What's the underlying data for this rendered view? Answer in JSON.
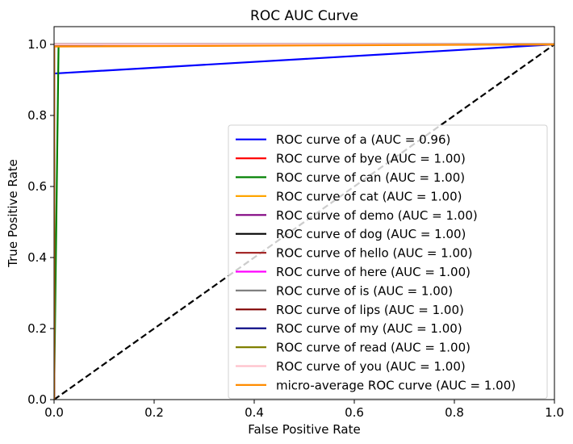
{
  "chart_data": {
    "type": "line",
    "title": "ROC AUC Curve",
    "xlabel": "False Positive Rate",
    "ylabel": "True Positive Rate",
    "xlim": [
      0.0,
      1.0
    ],
    "ylim": [
      0.0,
      1.05
    ],
    "xticks": [
      "0.0",
      "0.2",
      "0.4",
      "0.6",
      "0.8",
      "1.0"
    ],
    "yticks": [
      "0.0",
      "0.2",
      "0.4",
      "0.6",
      "0.8",
      "1.0"
    ],
    "grid": false,
    "legend_position": "lower-right",
    "series": [
      {
        "name": "ROC curve of a (AUC = 0.96)",
        "color": "#0000ff",
        "x": [
          0.0,
          0.0,
          1.0
        ],
        "y": [
          0.0,
          0.918,
          1.0
        ]
      },
      {
        "name": "ROC curve of bye (AUC = 1.00)",
        "color": "#ff0000",
        "x": [
          0.0,
          0.0,
          1.0
        ],
        "y": [
          0.0,
          1.0,
          1.0
        ]
      },
      {
        "name": "ROC curve of can (AUC = 1.00)",
        "color": "#008000",
        "x": [
          0.0,
          0.009,
          1.0
        ],
        "y": [
          0.0,
          1.0,
          1.0
        ]
      },
      {
        "name": "ROC curve of cat (AUC = 1.00)",
        "color": "#ffa500",
        "x": [
          0.0,
          0.0,
          1.0
        ],
        "y": [
          0.0,
          1.0,
          1.0
        ]
      },
      {
        "name": "ROC curve of demo (AUC = 1.00)",
        "color": "#800080",
        "x": [
          0.0,
          0.0,
          1.0
        ],
        "y": [
          0.0,
          1.0,
          1.0
        ]
      },
      {
        "name": "ROC curve of dog (AUC = 1.00)",
        "color": "#000000",
        "x": [
          0.0,
          0.0,
          1.0
        ],
        "y": [
          0.0,
          1.0,
          1.0
        ]
      },
      {
        "name": "ROC curve of hello (AUC = 1.00)",
        "color": "#a52a2a",
        "x": [
          0.0,
          0.0,
          1.0
        ],
        "y": [
          0.0,
          1.0,
          1.0
        ]
      },
      {
        "name": "ROC curve of here (AUC = 1.00)",
        "color": "#ff00ff",
        "x": [
          0.0,
          0.0,
          1.0
        ],
        "y": [
          0.0,
          1.0,
          1.0
        ]
      },
      {
        "name": "ROC curve of is (AUC = 1.00)",
        "color": "#808080",
        "x": [
          0.0,
          0.0,
          1.0
        ],
        "y": [
          0.0,
          1.0,
          1.0
        ]
      },
      {
        "name": "ROC curve of lips (AUC = 1.00)",
        "color": "#800000",
        "x": [
          0.0,
          0.0,
          1.0
        ],
        "y": [
          0.0,
          1.0,
          1.0
        ]
      },
      {
        "name": "ROC curve of my (AUC = 1.00)",
        "color": "#000080",
        "x": [
          0.0,
          0.0,
          1.0
        ],
        "y": [
          0.0,
          1.0,
          1.0
        ]
      },
      {
        "name": "ROC curve of read (AUC = 1.00)",
        "color": "#808000",
        "x": [
          0.0,
          0.0,
          1.0
        ],
        "y": [
          0.0,
          1.0,
          1.0
        ]
      },
      {
        "name": "ROC curve of you (AUC = 1.00)",
        "color": "#ffc0cb",
        "x": [
          0.0,
          0.0,
          1.0
        ],
        "y": [
          0.0,
          1.0,
          1.0
        ]
      },
      {
        "name": "micro-average ROC curve (AUC = 1.00)",
        "color": "#ff8c00",
        "x": [
          0.0,
          0.0,
          1.0
        ],
        "y": [
          0.0,
          0.994,
          1.0
        ]
      }
    ],
    "reference_line": {
      "x": [
        0.0,
        1.0
      ],
      "y": [
        0.0,
        1.0
      ],
      "color": "#000000",
      "style": "dashed"
    }
  }
}
